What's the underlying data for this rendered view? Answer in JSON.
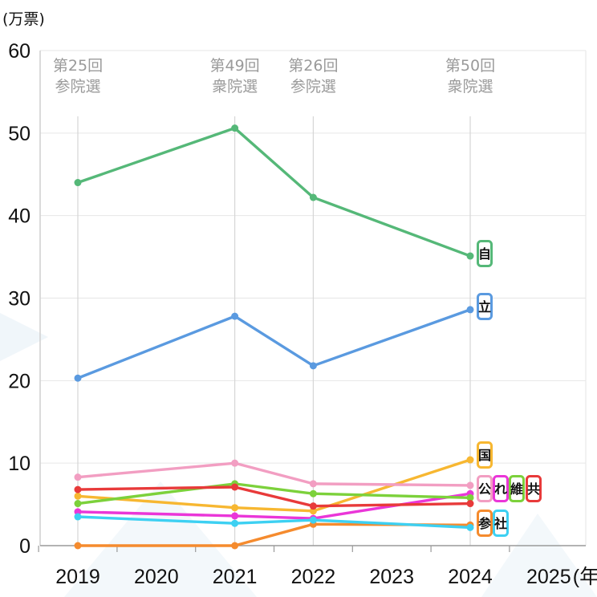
{
  "chart_data": {
    "type": "line",
    "y_unit_label": "(万票)",
    "x_unit_label": "(年)",
    "ylim": [
      0,
      60
    ],
    "yticks": [
      0,
      10,
      20,
      30,
      40,
      50,
      60
    ],
    "xlim": [
      2018.5,
      2025.5
    ],
    "xticks": [
      2019,
      2020,
      2021,
      2022,
      2023,
      2024,
      2025
    ],
    "elections": [
      {
        "year": 2019,
        "line1": "第25回",
        "line2": "参院選"
      },
      {
        "year": 2021,
        "line1": "第49回",
        "line2": "衆院選"
      },
      {
        "year": 2022,
        "line1": "第26回",
        "line2": "参院選"
      },
      {
        "year": 2024,
        "line1": "第50回",
        "line2": "衆院選"
      }
    ],
    "x": [
      2019,
      2021,
      2022,
      2024
    ],
    "series": [
      {
        "key": "ldp",
        "label": "自",
        "color": "#55b878",
        "values": [
          44.0,
          50.6,
          42.2,
          35.1
        ]
      },
      {
        "key": "cdp",
        "label": "立",
        "color": "#5a9ae0",
        "values": [
          20.3,
          27.8,
          21.8,
          28.6
        ]
      },
      {
        "key": "dpfp",
        "label": "国",
        "color": "#f7b731",
        "values": [
          6.0,
          4.6,
          4.2,
          10.4
        ]
      },
      {
        "key": "komeito",
        "label": "公",
        "color": "#f29ec2",
        "values": [
          8.3,
          10.0,
          7.5,
          7.3
        ]
      },
      {
        "key": "reiwa",
        "label": "れ",
        "color": "#ea36d8",
        "values": [
          4.1,
          3.6,
          3.3,
          6.3
        ]
      },
      {
        "key": "ishin",
        "label": "維",
        "color": "#7cd13b",
        "values": [
          5.1,
          7.5,
          6.3,
          5.8
        ]
      },
      {
        "key": "jcp",
        "label": "共",
        "color": "#e83a3a",
        "values": [
          6.8,
          7.1,
          4.8,
          5.1
        ]
      },
      {
        "key": "sanseito",
        "label": "参",
        "color": "#f58b2e",
        "values": [
          0.0,
          0.0,
          2.6,
          2.5
        ]
      },
      {
        "key": "sdp",
        "label": "社",
        "color": "#3dd0f2",
        "values": [
          3.5,
          2.7,
          3.1,
          2.2
        ]
      }
    ]
  }
}
